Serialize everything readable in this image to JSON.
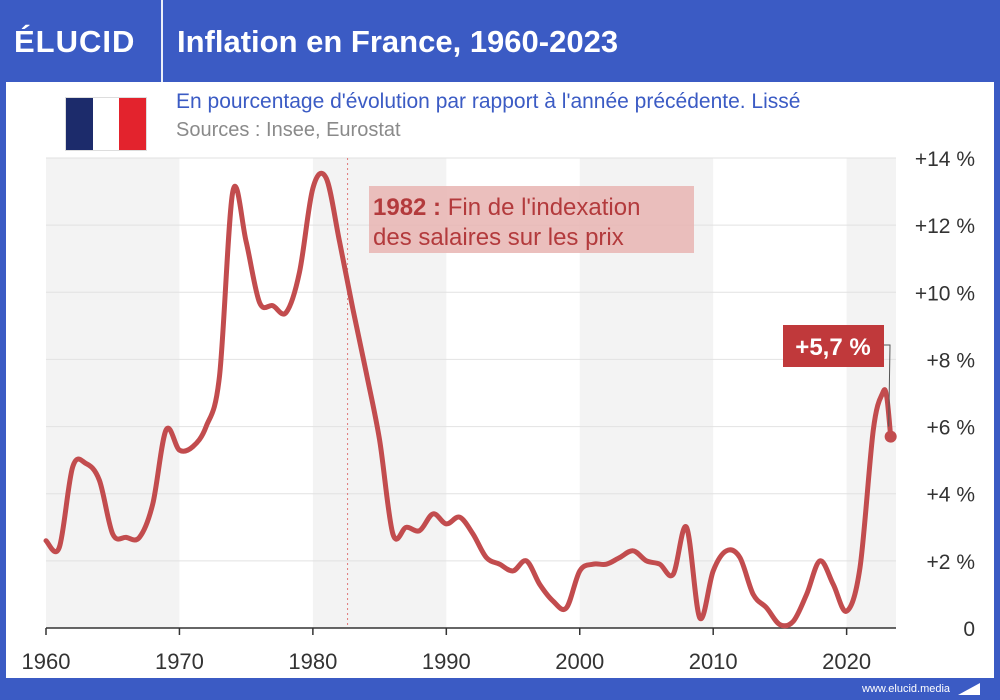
{
  "header": {
    "logo": "ÉLUCID",
    "title": "Inflation en France, 1960-2023"
  },
  "subtitle": "En pourcentage d'évolution par rapport à l'année précédente. Lissé",
  "sources": "Sources : Insee, Eurostat",
  "footer": {
    "site": "www.elucid.media"
  },
  "colors": {
    "brand": "#3b5bc4",
    "line": "#c24c4e",
    "annotation_bg": "#e8b4b2",
    "annotation_text": "#b33a3c",
    "badge_bg": "#c0393b"
  },
  "chart_data": {
    "type": "line",
    "xlim": [
      1960,
      2023.7
    ],
    "ylim": [
      0,
      14
    ],
    "x_ticks": [
      "1960",
      "1970",
      "1980",
      "1990",
      "2000",
      "2010",
      "2020"
    ],
    "y_ticks": [
      "0",
      "+2 %",
      "+4 %",
      "+6 %",
      "+8 %",
      "+10 %",
      "+12 %",
      "+14 %"
    ],
    "grid": true,
    "series": [
      {
        "points": [
          [
            1960.0,
            2.6
          ],
          [
            1961.0,
            2.4
          ],
          [
            1962.0,
            4.8
          ],
          [
            1963.0,
            4.9
          ],
          [
            1964.0,
            4.4
          ],
          [
            1965.0,
            2.8
          ],
          [
            1966.0,
            2.7
          ],
          [
            1967.0,
            2.7
          ],
          [
            1968.0,
            3.7
          ],
          [
            1969.0,
            5.9
          ],
          [
            1970.0,
            5.3
          ],
          [
            1971.0,
            5.4
          ],
          [
            1972.0,
            6.0
          ],
          [
            1973.0,
            7.5
          ],
          [
            1974.0,
            13.0
          ],
          [
            1975.0,
            11.5
          ],
          [
            1976.0,
            9.7
          ],
          [
            1977.0,
            9.6
          ],
          [
            1978.0,
            9.4
          ],
          [
            1979.0,
            10.6
          ],
          [
            1980.0,
            13.1
          ],
          [
            1981.0,
            13.4
          ],
          [
            1982.0,
            11.5
          ],
          [
            1983.0,
            9.5
          ],
          [
            1984.0,
            7.6
          ],
          [
            1985.0,
            5.6
          ],
          [
            1986.0,
            2.8
          ],
          [
            1987.0,
            3.0
          ],
          [
            1988.0,
            2.9
          ],
          [
            1989.0,
            3.4
          ],
          [
            1990.0,
            3.1
          ],
          [
            1991.0,
            3.3
          ],
          [
            1992.0,
            2.8
          ],
          [
            1993.0,
            2.1
          ],
          [
            1994.0,
            1.9
          ],
          [
            1995.0,
            1.7
          ],
          [
            1996.0,
            2.0
          ],
          [
            1997.0,
            1.3
          ],
          [
            1998.0,
            0.8
          ],
          [
            1999.0,
            0.6
          ],
          [
            2000.0,
            1.7
          ],
          [
            2001.0,
            1.9
          ],
          [
            2002.0,
            1.9
          ],
          [
            2003.0,
            2.1
          ],
          [
            2004.0,
            2.3
          ],
          [
            2005.0,
            2.0
          ],
          [
            2006.0,
            1.9
          ],
          [
            2007.0,
            1.6
          ],
          [
            2008.0,
            3.0
          ],
          [
            2009.0,
            0.3
          ],
          [
            2010.0,
            1.7
          ],
          [
            2011.0,
            2.3
          ],
          [
            2012.0,
            2.1
          ],
          [
            2013.0,
            1.0
          ],
          [
            2014.0,
            0.6
          ],
          [
            2015.0,
            0.1
          ],
          [
            2016.0,
            0.2
          ],
          [
            2017.0,
            1.0
          ],
          [
            2018.0,
            2.0
          ],
          [
            2019.0,
            1.3
          ],
          [
            2020.0,
            0.5
          ],
          [
            2021.0,
            1.8
          ],
          [
            2022.0,
            5.9
          ],
          [
            2022.7,
            7.0
          ],
          [
            2023.0,
            6.9
          ],
          [
            2023.3,
            5.7
          ]
        ]
      }
    ],
    "annotations": [
      {
        "x": 1982.6,
        "bold": "1982 :",
        "line1": " Fin de l'indexation",
        "line2": "des salaires sur les prix"
      },
      {
        "x": 2023.3,
        "y": 5.7,
        "label": "+5,7 %"
      }
    ]
  }
}
